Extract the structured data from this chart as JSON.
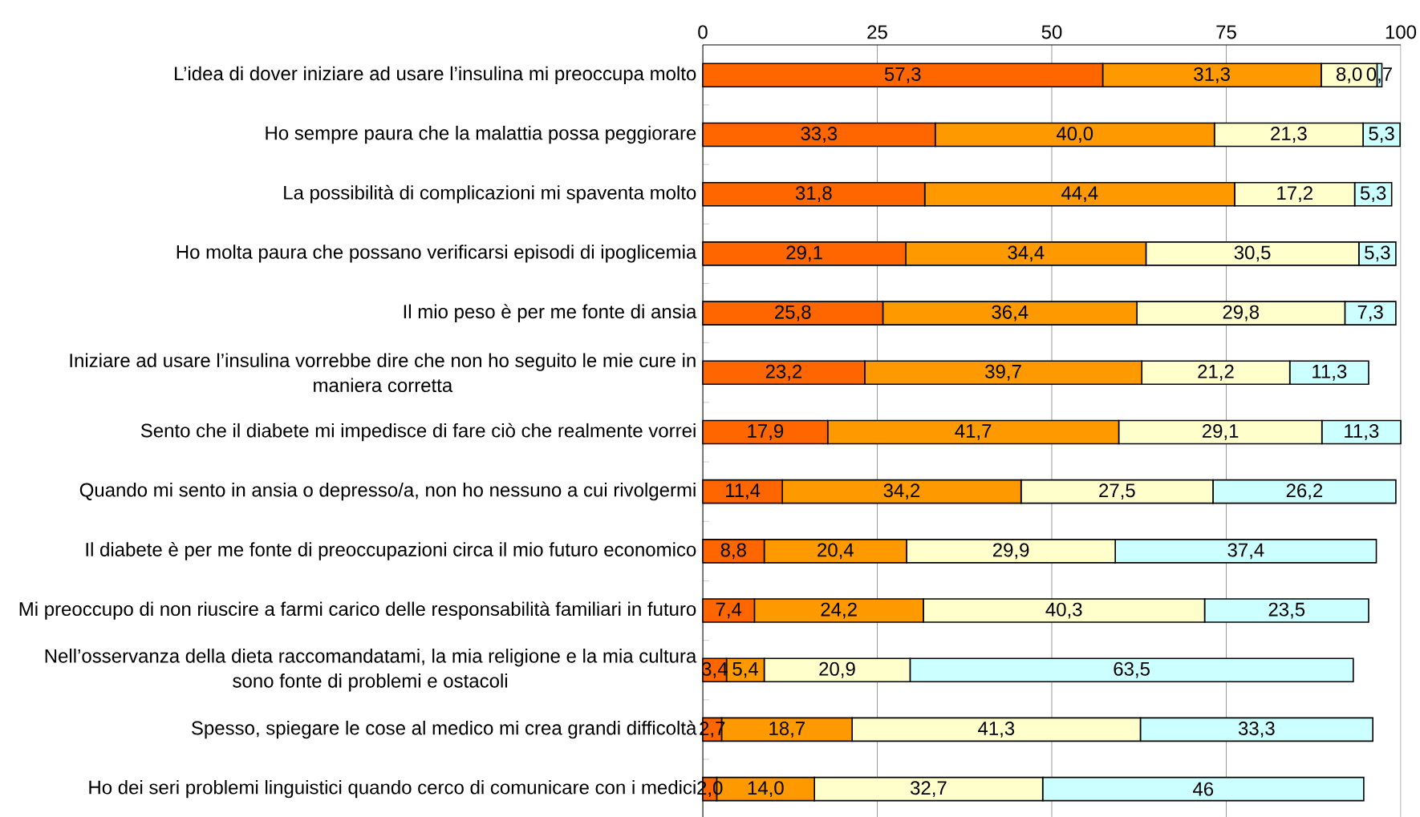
{
  "chart_data": {
    "type": "bar",
    "orientation": "horizontal",
    "stacked": true,
    "grid": "x",
    "xlim": [
      0,
      100
    ],
    "xticks": [
      0,
      25,
      50,
      75,
      100
    ],
    "categories": [
      "L’idea di dover iniziare ad usare l’insulina mi preoccupa molto",
      "Ho sempre paura che la malattia possa peggiorare",
      "La possibilità di complicazioni mi spaventa molto",
      "Ho molta paura che possano verificarsi episodi di ipoglicemia",
      "Il mio peso è per me fonte di ansia",
      "Iniziare ad usare l’insulina vorrebbe dire che non ho seguito le mie cure in maniera corretta",
      "Sento che il diabete mi impedisce di fare ciò che realmente vorrei",
      "Quando mi sento in ansia o depresso/a, non ho nessuno a cui rivolgermi",
      "Il diabete è per me fonte di preoccupazioni circa il mio futuro economico",
      "Mi preoccupo di non riuscire a farmi carico delle responsabilità familiari in futuro",
      "Nell’osservanza della dieta raccomandatami, la mia religione e la mia cultura sono fonte di problemi e ostacoli",
      "Spesso, spiegare le cose al medico mi crea grandi difficoltà",
      "Ho dei seri problemi linguistici quando cerco di comunicare con i medici"
    ],
    "series": [
      {
        "color": "#ff6600",
        "values": [
          57.3,
          33.3,
          31.8,
          29.1,
          25.8,
          23.2,
          17.9,
          11.4,
          8.8,
          7.4,
          3.4,
          2.7,
          2.0
        ],
        "value_labels": [
          "57,3",
          "33,3",
          "31,8",
          "29,1",
          "25,8",
          "23,2",
          "17,9",
          "11,4",
          "8,8",
          "7,4",
          "3,4",
          "2,7",
          "2,0"
        ]
      },
      {
        "color": "#ff9900",
        "values": [
          31.3,
          40.0,
          44.4,
          34.4,
          36.4,
          39.7,
          41.7,
          34.2,
          20.4,
          24.2,
          5.4,
          18.7,
          14.0
        ],
        "value_labels": [
          "31,3",
          "40,0",
          "44,4",
          "34,4",
          "36,4",
          "39,7",
          "41,7",
          "34,2",
          "20,4",
          "24,2",
          "5,4",
          "18,7",
          "14,0"
        ]
      },
      {
        "color": "#ffffcc",
        "values": [
          8.0,
          21.3,
          17.2,
          30.5,
          29.8,
          21.2,
          29.1,
          27.5,
          29.9,
          40.3,
          20.9,
          41.3,
          32.7
        ],
        "value_labels": [
          "8,0",
          "21,3",
          "17,2",
          "30,5",
          "29,8",
          "21,2",
          "29,1",
          "27,5",
          "29,9",
          "40,3",
          "20,9",
          "41,3",
          "32,7"
        ]
      },
      {
        "color": "#ccffff",
        "values": [
          0.7,
          5.3,
          5.3,
          5.3,
          7.3,
          11.3,
          11.3,
          26.2,
          37.4,
          23.5,
          63.5,
          33.3,
          46
        ],
        "value_labels": [
          "0,7",
          "5,3",
          "5,3",
          "5,3",
          "7,3",
          "11,3",
          "11,3",
          "26,2",
          "37,4",
          "23,5",
          "63,5",
          "33,3",
          "46"
        ]
      }
    ]
  }
}
